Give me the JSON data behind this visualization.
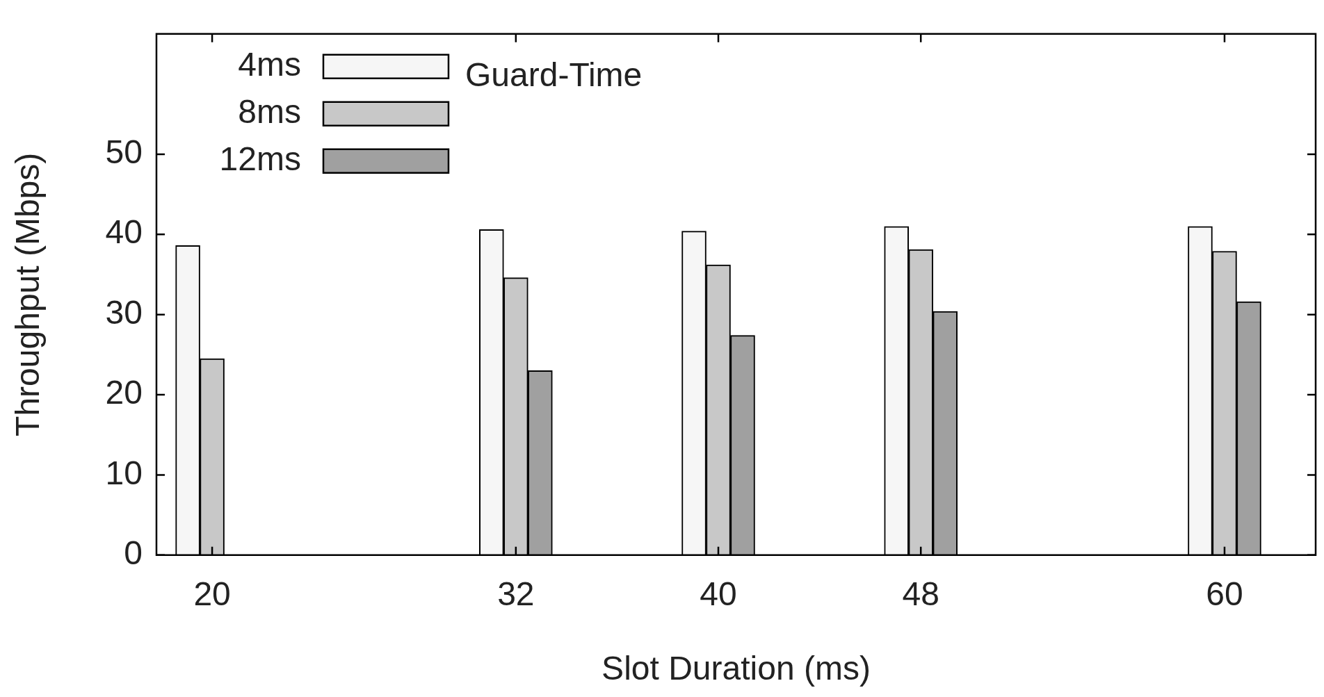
{
  "chart_data": {
    "type": "bar",
    "xlabel": "Slot Duration (ms)",
    "ylabel": "Throughput (Mbps)",
    "legend_title": "Guard-Time",
    "legend": "top left",
    "grid": false,
    "x": [
      20,
      32,
      40,
      48,
      60
    ],
    "xlim": [
      17.8,
      63.6
    ],
    "xticks": [
      20,
      32,
      40,
      48,
      60
    ],
    "ylim": [
      0,
      65
    ],
    "yticks": [
      0,
      10,
      20,
      30,
      40,
      50
    ],
    "series": [
      {
        "name": "4ms",
        "color": "#f6f6f6",
        "values": [
          38.6,
          40.6,
          40.4,
          41.0,
          41.0
        ]
      },
      {
        "name": "8ms",
        "color": "#c8c8c8",
        "values": [
          24.5,
          34.6,
          36.2,
          38.1,
          37.9
        ]
      },
      {
        "name": "12ms",
        "color": "#a0a0a0",
        "values": [
          null,
          23.0,
          27.4,
          30.4,
          31.6
        ]
      }
    ]
  }
}
